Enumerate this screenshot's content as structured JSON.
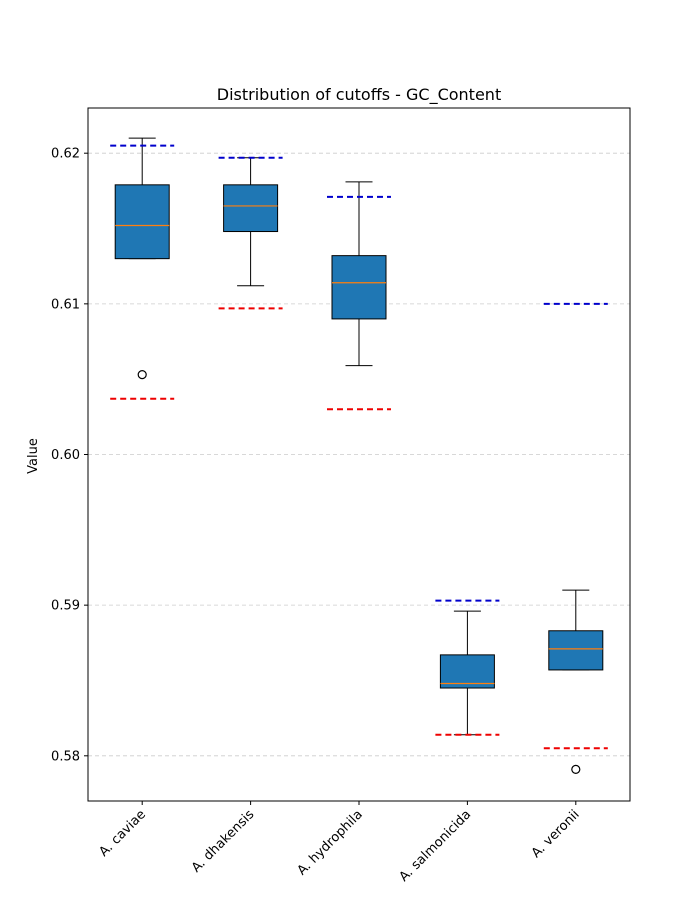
{
  "chart_data": {
    "type": "boxplot",
    "title": "Distribution of cutoffs - GC_Content",
    "xlabel": "",
    "ylabel": "Value",
    "ylim": [
      0.577,
      0.623
    ],
    "yticks": [
      "0.58",
      "0.59",
      "0.60",
      "0.61",
      "0.62"
    ],
    "ytick_values": [
      0.58,
      0.59,
      0.6,
      0.61,
      0.62
    ],
    "grid": {
      "y": true,
      "x": false,
      "style": "dashed"
    },
    "colors": {
      "box_fill": "#1f77b4",
      "median": "#ff7f0e",
      "upper_cutoff": "#0000cc",
      "lower_cutoff": "#ee0000",
      "grid": "#cccccc"
    },
    "categories": [
      "A. caviae",
      "A. dhakensis",
      "A. hydrophila",
      "A. salmonicida",
      "A. veronii"
    ],
    "boxes": [
      {
        "name": "A. caviae",
        "whisker_low": 0.613,
        "q1": 0.613,
        "median": 0.6152,
        "q3": 0.6179,
        "whisker_high": 0.621,
        "outliers": [
          0.6053
        ],
        "upper_cutoff": 0.6205,
        "lower_cutoff": 0.6037
      },
      {
        "name": "A. dhakensis",
        "whisker_low": 0.6112,
        "q1": 0.6148,
        "median": 0.6165,
        "q3": 0.6179,
        "whisker_high": 0.6197,
        "outliers": [],
        "upper_cutoff": 0.6197,
        "lower_cutoff": 0.6097
      },
      {
        "name": "A. hydrophila",
        "whisker_low": 0.6059,
        "q1": 0.609,
        "median": 0.6114,
        "q3": 0.6132,
        "whisker_high": 0.6181,
        "outliers": [],
        "upper_cutoff": 0.6171,
        "lower_cutoff": 0.603
      },
      {
        "name": "A. salmonicida",
        "whisker_low": 0.5814,
        "q1": 0.5845,
        "median": 0.5848,
        "q3": 0.5867,
        "whisker_high": 0.5896,
        "outliers": [],
        "upper_cutoff": 0.5903,
        "lower_cutoff": 0.5814
      },
      {
        "name": "A. veronii",
        "whisker_low": 0.5857,
        "q1": 0.5857,
        "median": 0.5871,
        "q3": 0.5883,
        "whisker_high": 0.591,
        "outliers": [
          0.5791
        ],
        "upper_cutoff": 0.61,
        "lower_cutoff": 0.5805
      }
    ]
  }
}
